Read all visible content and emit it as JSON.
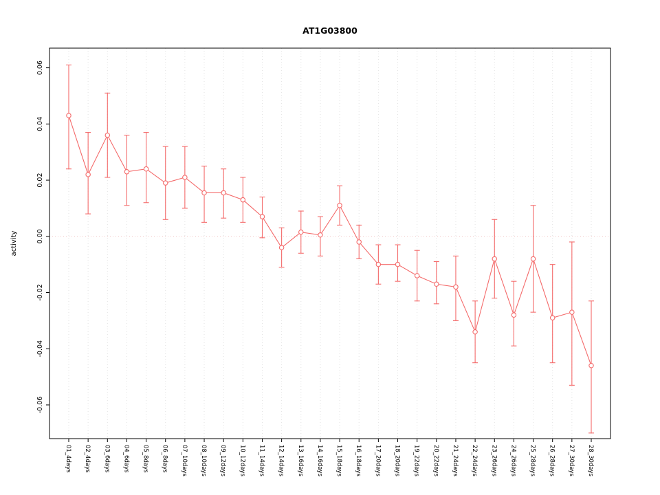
{
  "chart_data": {
    "type": "line",
    "title": "AT1G03800",
    "xlabel": "",
    "ylabel": "activity",
    "categories": [
      "01_4days",
      "02_4days",
      "03_6days",
      "04_6days",
      "05_8days",
      "06_8days",
      "07_10days",
      "08_10days",
      "09_12days",
      "10_12days",
      "11_14days",
      "12_14days",
      "13_16days",
      "14_16days",
      "15_18days",
      "16_18days",
      "17_20days",
      "18_20days",
      "19_22days",
      "20_22days",
      "21_24days",
      "22_24days",
      "23_26days",
      "24_26days",
      "25_28days",
      "26_28days",
      "27_30days",
      "28_30days"
    ],
    "series": [
      {
        "name": "AT1G03800 activity",
        "values": [
          0.043,
          0.022,
          0.036,
          0.023,
          0.024,
          0.019,
          0.021,
          0.0155,
          0.0155,
          0.013,
          0.007,
          -0.004,
          0.0015,
          0.0005,
          0.011,
          -0.002,
          -0.01,
          -0.01,
          -0.014,
          -0.017,
          -0.018,
          -0.034,
          -0.008,
          -0.028,
          -0.008,
          -0.029,
          -0.027,
          -0.046
        ],
        "upper": [
          0.061,
          0.037,
          0.051,
          0.036,
          0.037,
          0.032,
          0.032,
          0.025,
          0.024,
          0.021,
          0.014,
          0.003,
          0.009,
          0.007,
          0.018,
          0.004,
          -0.003,
          -0.003,
          -0.005,
          -0.009,
          -0.007,
          -0.023,
          0.006,
          -0.016,
          0.011,
          -0.01,
          -0.002,
          -0.023
        ],
        "lower": [
          0.024,
          0.008,
          0.021,
          0.011,
          0.012,
          0.006,
          0.01,
          0.005,
          0.0065,
          0.005,
          -0.0005,
          -0.011,
          -0.006,
          -0.007,
          0.004,
          -0.008,
          -0.017,
          -0.016,
          -0.023,
          -0.024,
          -0.03,
          -0.045,
          -0.022,
          -0.039,
          -0.027,
          -0.045,
          -0.053,
          -0.07
        ]
      }
    ],
    "ylim": [
      -0.072,
      0.067
    ],
    "yticks": [
      -0.06,
      -0.04,
      -0.02,
      0,
      0.02,
      0.04,
      0.06
    ],
    "legend": "none",
    "grid": "dotted vertical line at each category; dotted horizontal line at zero",
    "marker": "open-circle",
    "error_bars": true,
    "colors": {
      "series": "#f46a6a",
      "grid": "#e2e2e2",
      "zero_line": "#f0c6c6",
      "axis": "#000000",
      "background": "#ffffff"
    }
  }
}
